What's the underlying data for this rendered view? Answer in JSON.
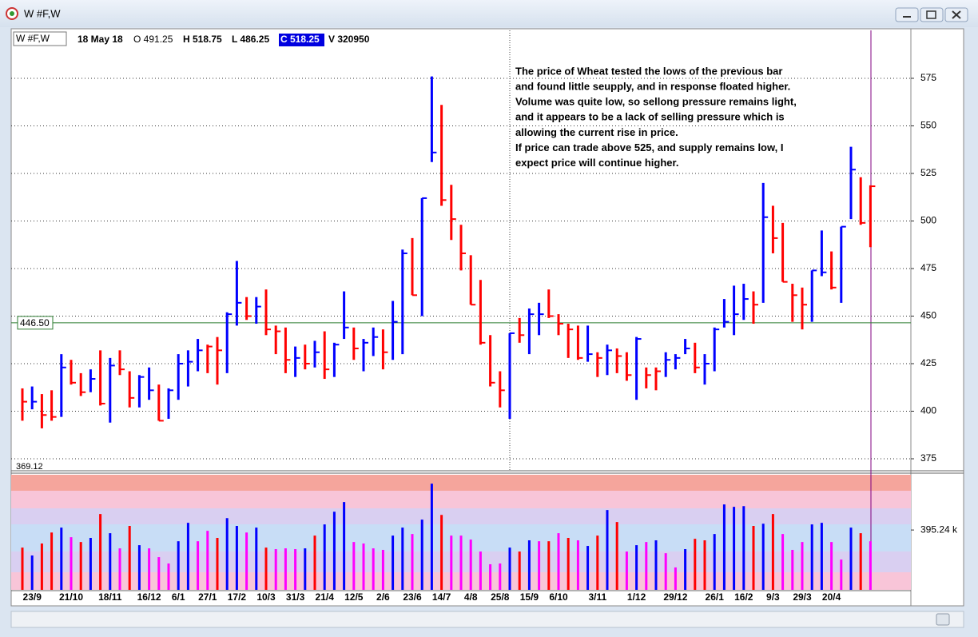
{
  "window": {
    "title": "W #F,W"
  },
  "header": {
    "symbol": "W #F,W",
    "date": "18 May 18",
    "open": "O 491.25",
    "high": "H 518.75",
    "low": "L 486.25",
    "close": "C 518.25",
    "volume": "V 320950"
  },
  "chart_data": [
    {
      "type": "ohlc",
      "annotation": [
        "The price of Wheat tested the lows of the previous bar",
        "and found little seupply, and in response floated higher.",
        "Volume was quite low, so sellong pressure remains light,",
        "and it appears to be a lack of selling pressure which is",
        "allowing the current rise in price.",
        "If price can trade above 525, and supply remains low,  I",
        "expect price will continue higher."
      ],
      "categories": [
        null,
        "23/9",
        null,
        null,
        null,
        "21/10",
        null,
        null,
        null,
        "18/11",
        null,
        null,
        null,
        "16/12",
        null,
        null,
        "6/1",
        null,
        null,
        "27/1",
        null,
        null,
        "17/2",
        null,
        null,
        "10/3",
        null,
        null,
        "31/3",
        null,
        null,
        "21/4",
        null,
        null,
        "12/5",
        null,
        null,
        "2/6",
        null,
        null,
        "23/6",
        null,
        null,
        "14/7",
        null,
        null,
        "4/8",
        null,
        null,
        "25/8",
        null,
        null,
        "15/9",
        null,
        null,
        "6/10",
        null,
        null,
        null,
        "3/11",
        null,
        null,
        null,
        "1/12",
        null,
        null,
        null,
        "29/12",
        null,
        null,
        null,
        "26/1",
        null,
        null,
        "16/2",
        null,
        null,
        "9/3",
        null,
        null,
        "29/3",
        null,
        null,
        "20/4",
        null,
        null,
        null,
        null
      ],
      "high": [
        412,
        413,
        409,
        411,
        430,
        427,
        420,
        422,
        432,
        428,
        432,
        421,
        419,
        423,
        414,
        412,
        430,
        432,
        438,
        435,
        439,
        452,
        479,
        460,
        460,
        464,
        445,
        444,
        434,
        435,
        437,
        442,
        436,
        463,
        444,
        438,
        444,
        443,
        458,
        485,
        491,
        512,
        576,
        561,
        519,
        498,
        482,
        469,
        440,
        421,
        441,
        449,
        454,
        457,
        464,
        451,
        446,
        445,
        445,
        431,
        435,
        433,
        431,
        439,
        423,
        423,
        431,
        430,
        438,
        436,
        430,
        444,
        459,
        466,
        467,
        463,
        520,
        508,
        499,
        467,
        465,
        474,
        495,
        484,
        497,
        539,
        523,
        518.75
      ],
      "low": [
        395,
        401,
        391,
        395,
        397,
        414,
        408,
        410,
        403,
        394,
        419,
        402,
        402,
        406,
        395,
        396,
        406,
        413,
        421,
        420,
        414,
        420,
        445,
        448,
        446,
        440,
        430,
        420,
        418,
        422,
        423,
        417,
        418,
        438,
        427,
        421,
        429,
        422,
        427,
        430,
        461,
        450,
        531,
        508,
        490,
        474,
        456,
        435,
        413,
        402,
        396,
        436,
        430,
        440,
        449,
        440,
        428,
        427,
        426,
        418,
        419,
        420,
        416,
        406,
        412,
        411,
        418,
        422,
        430,
        420,
        414,
        421,
        444,
        440,
        448,
        446,
        457,
        483,
        468,
        447,
        443,
        447,
        471,
        464,
        457,
        501,
        498,
        486.25
      ],
      "close": [
        405,
        405,
        398,
        397,
        423,
        415,
        410,
        417,
        404,
        424,
        422,
        407,
        418,
        411,
        395,
        411,
        425,
        426,
        432,
        434,
        432,
        451,
        457,
        450,
        455,
        443,
        442,
        427,
        428,
        425,
        431,
        422,
        435,
        444,
        433,
        436,
        439,
        431,
        447,
        483,
        461,
        512,
        536,
        511,
        501,
        483,
        456,
        436,
        415,
        411,
        441,
        440,
        451,
        451,
        450,
        446,
        443,
        428,
        430,
        428,
        432,
        429,
        419,
        438,
        419,
        421,
        427,
        428,
        433,
        423,
        425,
        443,
        447,
        451,
        459,
        456,
        502,
        491,
        468,
        461,
        456,
        474,
        473,
        465,
        497,
        527,
        499,
        518.25
      ],
      "colors": [
        "red",
        "blue",
        "red",
        "red",
        "blue",
        "red",
        "red",
        "blue",
        "red",
        "blue",
        "red",
        "red",
        "blue",
        "blue",
        "red",
        "blue",
        "blue",
        "blue",
        "blue",
        "red",
        "red",
        "blue",
        "blue",
        "red",
        "blue",
        "red",
        "red",
        "red",
        "blue",
        "red",
        "blue",
        "red",
        "blue",
        "blue",
        "red",
        "blue",
        "blue",
        "red",
        "blue",
        "blue",
        "red",
        "blue",
        "blue",
        "red",
        "red",
        "red",
        "red",
        "red",
        "red",
        "red",
        "blue",
        "red",
        "blue",
        "blue",
        "red",
        "red",
        "red",
        "red",
        "blue",
        "red",
        "blue",
        "red",
        "red",
        "blue",
        "red",
        "red",
        "blue",
        "blue",
        "blue",
        "red",
        "blue",
        "blue",
        "blue",
        "blue",
        "blue",
        "red",
        "blue",
        "red",
        "red",
        "red",
        "red",
        "blue",
        "blue",
        "red",
        "blue",
        "blue",
        "red",
        "red"
      ],
      "ylim": [
        369.12,
        600.2
      ],
      "yticks": [
        375,
        400,
        425,
        450,
        475,
        500,
        525,
        550,
        575
      ],
      "grid": true,
      "hline": {
        "value": 446.5,
        "label": "446.50",
        "color": "#2e7d32"
      }
    },
    {
      "type": "bar",
      "values": [
        279000,
        227000,
        306000,
        379000,
        411000,
        348000,
        316000,
        343000,
        501000,
        374000,
        274000,
        422000,
        295000,
        274000,
        216000,
        174000,
        321000,
        443000,
        321000,
        390000,
        343000,
        474000,
        422000,
        379000,
        411000,
        279000,
        269000,
        274000,
        269000,
        274000,
        358000,
        432000,
        516000,
        580000,
        316000,
        306000,
        274000,
        264000,
        358000,
        411000,
        369000,
        464000,
        701000,
        495000,
        358000,
        358000,
        332000,
        253000,
        169000,
        174000,
        279000,
        253000,
        327000,
        321000,
        321000,
        374000,
        343000,
        327000,
        290000,
        358000,
        527000,
        448000,
        253000,
        295000,
        316000,
        327000,
        242000,
        148000,
        269000,
        337000,
        327000,
        369000,
        564000,
        548000,
        553000,
        422000,
        437000,
        501000,
        369000,
        264000,
        316000,
        432000,
        443000,
        316000,
        200000,
        411000,
        374000,
        320950
      ],
      "colors": [
        "red",
        "blue",
        "red",
        "red",
        "blue",
        "magenta",
        "red",
        "blue",
        "red",
        "blue",
        "magenta",
        "red",
        "blue",
        "magenta",
        "magenta",
        "magenta",
        "blue",
        "blue",
        "magenta",
        "magenta",
        "red",
        "blue",
        "blue",
        "magenta",
        "blue",
        "red",
        "magenta",
        "magenta",
        "magenta",
        "blue",
        "red",
        "blue",
        "blue",
        "blue",
        "magenta",
        "magenta",
        "magenta",
        "magenta",
        "blue",
        "blue",
        "magenta",
        "blue",
        "blue",
        "red",
        "magenta",
        "magenta",
        "magenta",
        "magenta",
        "magenta",
        "magenta",
        "blue",
        "red",
        "blue",
        "magenta",
        "red",
        "magenta",
        "red",
        "magenta",
        "blue",
        "red",
        "blue",
        "red",
        "magenta",
        "blue",
        "magenta",
        "blue",
        "magenta",
        "magenta",
        "blue",
        "red",
        "red",
        "blue",
        "blue",
        "blue",
        "blue",
        "red",
        "blue",
        "red",
        "magenta",
        "magenta",
        "magenta",
        "blue",
        "blue",
        "magenta",
        "magenta",
        "blue",
        "red",
        "magenta"
      ],
      "ylim": [
        0,
        760000
      ],
      "yticks": [
        {
          "value": 395240,
          "label": "395.24 k"
        }
      ]
    }
  ]
}
